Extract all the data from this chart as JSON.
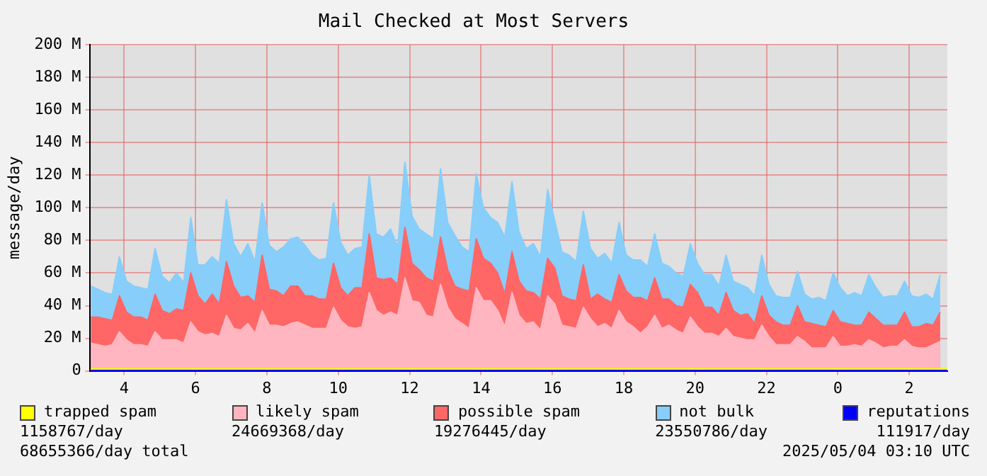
{
  "chart_data": {
    "type": "area",
    "title": "Mail Checked at Most Servers",
    "ylabel": "message/day",
    "stacked": true,
    "grid": true,
    "legend": "bottom",
    "xlim": [
      "2025-05-03T03:02",
      "2025-05-04T03:04"
    ],
    "xticks": [
      {
        "value": "2025-05-03T04:00",
        "label": "4"
      },
      {
        "value": "2025-05-03T06:00",
        "label": "6"
      },
      {
        "value": "2025-05-03T08:00",
        "label": "8"
      },
      {
        "value": "2025-05-03T10:00",
        "label": "10"
      },
      {
        "value": "2025-05-03T12:00",
        "label": "12"
      },
      {
        "value": "2025-05-03T14:00",
        "label": "14"
      },
      {
        "value": "2025-05-03T16:00",
        "label": "16"
      },
      {
        "value": "2025-05-03T18:00",
        "label": "18"
      },
      {
        "value": "2025-05-03T20:00",
        "label": "20"
      },
      {
        "value": "2025-05-03T22:00",
        "label": "22"
      },
      {
        "value": "2025-05-04T00:00",
        "label": "0"
      },
      {
        "value": "2025-05-04T02:00",
        "label": "2"
      }
    ],
    "ylim": [
      0,
      200
    ],
    "yticks": [
      0,
      {
        "value": 20,
        "label": "20 M"
      },
      {
        "value": 40,
        "label": "40 M"
      },
      {
        "value": 60,
        "label": "60 M"
      },
      {
        "value": 80,
        "label": "80 M"
      },
      {
        "value": 100,
        "label": "100 M"
      },
      {
        "value": 120,
        "label": "120 M"
      },
      {
        "value": 140,
        "label": "140 M"
      },
      {
        "value": 160,
        "label": "160 M"
      },
      {
        "value": 180,
        "label": "180 M"
      },
      {
        "value": 200,
        "label": "200 M"
      }
    ],
    "x": [
      "2025-05-03T03:04",
      "2025-05-03T03:16",
      "2025-05-03T03:28",
      "2025-05-03T03:40",
      "2025-05-03T03:52",
      "2025-05-03T04:04",
      "2025-05-03T04:16",
      "2025-05-03T04:28",
      "2025-05-03T04:40",
      "2025-05-03T04:52",
      "2025-05-03T05:04",
      "2025-05-03T05:16",
      "2025-05-03T05:28",
      "2025-05-03T05:40",
      "2025-05-03T05:52",
      "2025-05-03T06:04",
      "2025-05-03T06:16",
      "2025-05-03T06:28",
      "2025-05-03T06:40",
      "2025-05-03T06:52",
      "2025-05-03T07:04",
      "2025-05-03T07:16",
      "2025-05-03T07:28",
      "2025-05-03T07:40",
      "2025-05-03T07:52",
      "2025-05-03T08:04",
      "2025-05-03T08:16",
      "2025-05-03T08:28",
      "2025-05-03T08:40",
      "2025-05-03T08:52",
      "2025-05-03T09:04",
      "2025-05-03T09:16",
      "2025-05-03T09:28",
      "2025-05-03T09:40",
      "2025-05-03T09:52",
      "2025-05-03T10:04",
      "2025-05-03T10:16",
      "2025-05-03T10:28",
      "2025-05-03T10:40",
      "2025-05-03T10:52",
      "2025-05-03T11:04",
      "2025-05-03T11:16",
      "2025-05-03T11:28",
      "2025-05-03T11:40",
      "2025-05-03T11:52",
      "2025-05-03T12:04",
      "2025-05-03T12:16",
      "2025-05-03T12:28",
      "2025-05-03T12:40",
      "2025-05-03T12:52",
      "2025-05-03T13:04",
      "2025-05-03T13:16",
      "2025-05-03T13:28",
      "2025-05-03T13:40",
      "2025-05-03T13:52",
      "2025-05-03T14:04",
      "2025-05-03T14:16",
      "2025-05-03T14:28",
      "2025-05-03T14:40",
      "2025-05-03T14:52",
      "2025-05-03T15:04",
      "2025-05-03T15:16",
      "2025-05-03T15:28",
      "2025-05-03T15:40",
      "2025-05-03T15:52",
      "2025-05-03T16:04",
      "2025-05-03T16:16",
      "2025-05-03T16:28",
      "2025-05-03T16:40",
      "2025-05-03T16:52",
      "2025-05-03T17:04",
      "2025-05-03T17:16",
      "2025-05-03T17:28",
      "2025-05-03T17:40",
      "2025-05-03T17:52",
      "2025-05-03T18:04",
      "2025-05-03T18:16",
      "2025-05-03T18:28",
      "2025-05-03T18:40",
      "2025-05-03T18:52",
      "2025-05-03T19:04",
      "2025-05-03T19:16",
      "2025-05-03T19:28",
      "2025-05-03T19:40",
      "2025-05-03T19:52",
      "2025-05-03T20:04",
      "2025-05-03T20:16",
      "2025-05-03T20:28",
      "2025-05-03T20:40",
      "2025-05-03T20:52",
      "2025-05-03T21:04",
      "2025-05-03T21:16",
      "2025-05-03T21:28",
      "2025-05-03T21:40",
      "2025-05-03T21:52",
      "2025-05-03T22:04",
      "2025-05-03T22:16",
      "2025-05-03T22:28",
      "2025-05-03T22:40",
      "2025-05-03T22:52",
      "2025-05-03T23:04",
      "2025-05-03T23:16",
      "2025-05-03T23:28",
      "2025-05-03T23:40",
      "2025-05-03T23:52",
      "2025-05-04T00:04",
      "2025-05-04T00:16",
      "2025-05-04T00:28",
      "2025-05-04T00:40",
      "2025-05-04T00:52",
      "2025-05-04T01:04",
      "2025-05-04T01:16",
      "2025-05-04T01:28",
      "2025-05-04T01:40",
      "2025-05-04T01:52",
      "2025-05-04T02:04",
      "2025-05-04T02:16",
      "2025-05-04T02:28",
      "2025-05-04T02:40",
      "2025-05-04T02:52"
    ],
    "series": [
      {
        "name": "trapped spam",
        "type": "line",
        "color": "#ffff00",
        "x": [
          "2025-05-03T03:04",
          "2025-05-04T03:04"
        ],
        "values": [
          1,
          1
        ]
      },
      {
        "name": "likely spam",
        "color": "#ffb6c1",
        "values": [
          17,
          16,
          15,
          16,
          24,
          19,
          16,
          16,
          15,
          24,
          19,
          19,
          19,
          17,
          30,
          24,
          22,
          23,
          21,
          34,
          26,
          25,
          29,
          23,
          37,
          28,
          28,
          27,
          29,
          30,
          28,
          26,
          26,
          26,
          39,
          31,
          27,
          26,
          27,
          48,
          37,
          34,
          36,
          34,
          57,
          43,
          42,
          34,
          33,
          53,
          39,
          32,
          29,
          26,
          51,
          43,
          43,
          37,
          27,
          48,
          34,
          29,
          30,
          25,
          46,
          41,
          28,
          27,
          26,
          39,
          32,
          27,
          29,
          26,
          37,
          30,
          27,
          23,
          27,
          34,
          26,
          28,
          25,
          23,
          33,
          27,
          23,
          23,
          21,
          26,
          21,
          20,
          19,
          19,
          28,
          21,
          16,
          16,
          16,
          21,
          18,
          14,
          14,
          14,
          21,
          15,
          15,
          16,
          15,
          19,
          17,
          14,
          15,
          15,
          19,
          15,
          14,
          14,
          16,
          18
        ]
      },
      {
        "name": "possible spam",
        "color": "#ff6666",
        "values": [
          16,
          17,
          17,
          15,
          22,
          17,
          17,
          17,
          16,
          23,
          18,
          16,
          19,
          20,
          30,
          22,
          19,
          24,
          20,
          33,
          26,
          20,
          17,
          19,
          34,
          22,
          21,
          19,
          23,
          22,
          18,
          20,
          18,
          18,
          27,
          20,
          19,
          25,
          24,
          36,
          20,
          22,
          21,
          19,
          31,
          23,
          20,
          23,
          22,
          29,
          23,
          20,
          21,
          23,
          30,
          26,
          23,
          23,
          20,
          25,
          21,
          20,
          18,
          19,
          23,
          22,
          18,
          17,
          17,
          26,
          12,
          20,
          15,
          16,
          22,
          19,
          18,
          22,
          16,
          23,
          18,
          16,
          15,
          16,
          20,
          21,
          16,
          16,
          13,
          22,
          16,
          14,
          16,
          10,
          18,
          13,
          14,
          12,
          12,
          19,
          12,
          15,
          14,
          13,
          16,
          15,
          14,
          12,
          13,
          17,
          15,
          14,
          13,
          13,
          17,
          12,
          13,
          15,
          12,
          18
        ]
      },
      {
        "name": "not bulk",
        "color": "#87cefa",
        "values": [
          19,
          17,
          16,
          16,
          24,
          19,
          19,
          18,
          19,
          28,
          21,
          19,
          22,
          17,
          34,
          19,
          24,
          23,
          25,
          38,
          26,
          25,
          32,
          25,
          32,
          27,
          24,
          30,
          29,
          30,
          31,
          25,
          24,
          25,
          37,
          28,
          25,
          24,
          25,
          36,
          27,
          26,
          30,
          23,
          40,
          29,
          25,
          27,
          26,
          42,
          29,
          31,
          26,
          24,
          40,
          31,
          28,
          31,
          35,
          43,
          30,
          26,
          30,
          26,
          42,
          29,
          27,
          27,
          24,
          33,
          31,
          22,
          28,
          24,
          32,
          22,
          23,
          23,
          21,
          27,
          22,
          20,
          20,
          19,
          25,
          18,
          20,
          20,
          18,
          23,
          18,
          19,
          16,
          17,
          25,
          19,
          16,
          17,
          17,
          21,
          17,
          15,
          17,
          16,
          23,
          21,
          17,
          20,
          18,
          23,
          19,
          17,
          18,
          18,
          19,
          19,
          18,
          18,
          16,
          23
        ]
      },
      {
        "name": "reputations",
        "type": "line",
        "color": "#0000ff",
        "x": [
          "2025-05-03T03:04",
          "2025-05-04T03:04"
        ],
        "values": [
          0,
          0
        ]
      }
    ],
    "annotations": [
      "1158767/day",
      "24669368/day",
      "19276445/day",
      "23550786/day",
      "111917/day",
      "68655366/day total",
      "2025/05/04 03:10 UTC"
    ]
  }
}
